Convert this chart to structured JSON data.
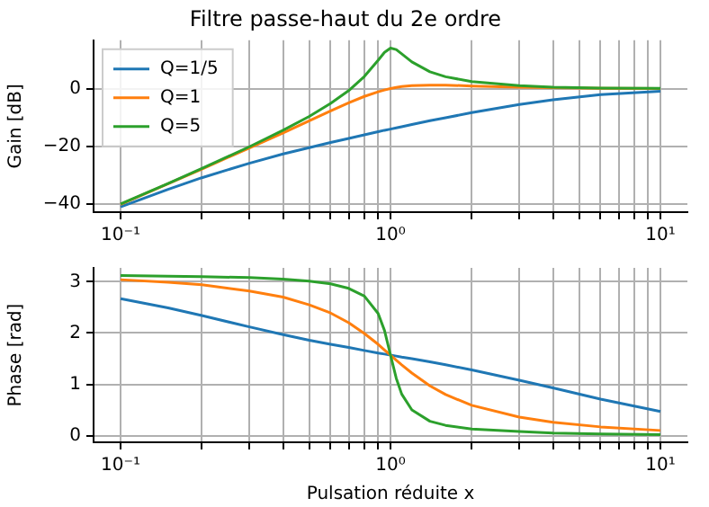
{
  "chart_data": [
    {
      "type": "line",
      "title": "Filtre passe-haut du 2e ordre",
      "ylabel": "Gain [dB]",
      "log": "x",
      "grid": true,
      "legend": "top left",
      "x": [
        0.1,
        0.15,
        0.2,
        0.3,
        0.4,
        0.5,
        0.6,
        0.7,
        0.8,
        0.9,
        0.95,
        1,
        1.05,
        1.1,
        1.2,
        1.4,
        1.6,
        2,
        3,
        4,
        6,
        10
      ],
      "series": [
        {
          "name": "Q=1/5",
          "color": "#1f77b4",
          "values": [
            -40.9,
            -34.8,
            -30.8,
            -25.8,
            -22.6,
            -20.4,
            -18.6,
            -17.2,
            -16.0,
            -14.9,
            -14.4,
            -14.0,
            -13.6,
            -13.2,
            -12.4,
            -11.1,
            -10.1,
            -8.3,
            -5.5,
            -3.9,
            -2.1,
            -0.9
          ]
        },
        {
          "name": "Q=1",
          "color": "#ff7f0e",
          "values": [
            -40.0,
            -32.9,
            -27.8,
            -20.5,
            -15.3,
            -11.1,
            -7.7,
            -4.9,
            -2.7,
            -1.1,
            -0.5,
            0.0,
            0.4,
            0.7,
            1.0,
            1.2,
            1.2,
            0.9,
            0.5,
            0.3,
            0.1,
            0.0
          ]
        },
        {
          "name": "Q=5",
          "color": "#2ca02c",
          "values": [
            -39.9,
            -32.8,
            -27.6,
            -20.1,
            -14.4,
            -9.6,
            -5.1,
            -0.7,
            4.2,
            9.8,
            12.5,
            14.0,
            13.5,
            12.0,
            9.2,
            5.8,
            4.1,
            2.4,
            1.0,
            0.5,
            0.2,
            0.1
          ]
        }
      ],
      "xlim": [
        0.0794,
        12.59
      ],
      "ylim": [
        -42.7,
        16.7
      ],
      "yticks": [
        -40,
        -20,
        0
      ],
      "xticks": [
        {
          "value": 0.1,
          "label": "10⁻¹"
        },
        {
          "value": 0.2,
          "label": null
        },
        {
          "value": 0.3,
          "label": null
        },
        {
          "value": 0.4,
          "label": null
        },
        {
          "value": 0.5,
          "label": null
        },
        {
          "value": 0.6,
          "label": null
        },
        {
          "value": 0.7,
          "label": null
        },
        {
          "value": 0.8,
          "label": null
        },
        {
          "value": 0.9,
          "label": null
        },
        {
          "value": 1,
          "label": "10⁰"
        },
        {
          "value": 2,
          "label": null
        },
        {
          "value": 3,
          "label": null
        },
        {
          "value": 4,
          "label": null
        },
        {
          "value": 5,
          "label": null
        },
        {
          "value": 6,
          "label": null
        },
        {
          "value": 7,
          "label": null
        },
        {
          "value": 8,
          "label": null
        },
        {
          "value": 9,
          "label": null
        },
        {
          "value": 10,
          "label": "10¹"
        }
      ]
    },
    {
      "type": "line",
      "xlabel": "Pulsation réduite x",
      "ylabel": "Phase [rad]",
      "log": "x",
      "grid": true,
      "x": [
        0.1,
        0.15,
        0.2,
        0.3,
        0.4,
        0.5,
        0.6,
        0.7,
        0.8,
        0.9,
        0.95,
        1,
        1.05,
        1.1,
        1.2,
        1.4,
        1.6,
        2,
        3,
        4,
        6,
        10
      ],
      "series": [
        {
          "color": "#1f77b4",
          "values": [
            2.67,
            2.49,
            2.34,
            2.12,
            1.97,
            1.86,
            1.78,
            1.72,
            1.66,
            1.61,
            1.59,
            1.57,
            1.55,
            1.53,
            1.5,
            1.44,
            1.38,
            1.28,
            1.08,
            0.93,
            0.71,
            0.47
          ]
        },
        {
          "color": "#ff7f0e",
          "values": [
            3.04,
            2.99,
            2.94,
            2.82,
            2.7,
            2.55,
            2.39,
            2.2,
            1.99,
            1.78,
            1.67,
            1.57,
            1.47,
            1.38,
            1.22,
            0.97,
            0.8,
            0.59,
            0.36,
            0.26,
            0.17,
            0.1
          ]
        },
        {
          "color": "#2ca02c",
          "values": [
            3.12,
            3.11,
            3.1,
            3.08,
            3.05,
            3.01,
            2.96,
            2.87,
            2.72,
            2.38,
            2.05,
            1.57,
            1.12,
            0.81,
            0.5,
            0.28,
            0.2,
            0.13,
            0.08,
            0.05,
            0.03,
            0.02
          ]
        }
      ],
      "xlim": [
        0.0794,
        12.59
      ],
      "ylim": [
        -0.13,
        3.27
      ],
      "yticks": [
        0,
        1,
        2,
        3
      ],
      "xticks": [
        {
          "value": 0.1,
          "label": "10⁻¹"
        },
        {
          "value": 0.2,
          "label": null
        },
        {
          "value": 0.3,
          "label": null
        },
        {
          "value": 0.4,
          "label": null
        },
        {
          "value": 0.5,
          "label": null
        },
        {
          "value": 0.6,
          "label": null
        },
        {
          "value": 0.7,
          "label": null
        },
        {
          "value": 0.8,
          "label": null
        },
        {
          "value": 0.9,
          "label": null
        },
        {
          "value": 1,
          "label": "10⁰"
        },
        {
          "value": 2,
          "label": null
        },
        {
          "value": 3,
          "label": null
        },
        {
          "value": 4,
          "label": null
        },
        {
          "value": 5,
          "label": null
        },
        {
          "value": 6,
          "label": null
        },
        {
          "value": 7,
          "label": null
        },
        {
          "value": 8,
          "label": null
        },
        {
          "value": 9,
          "label": null
        },
        {
          "value": 10,
          "label": "10¹"
        }
      ]
    }
  ]
}
